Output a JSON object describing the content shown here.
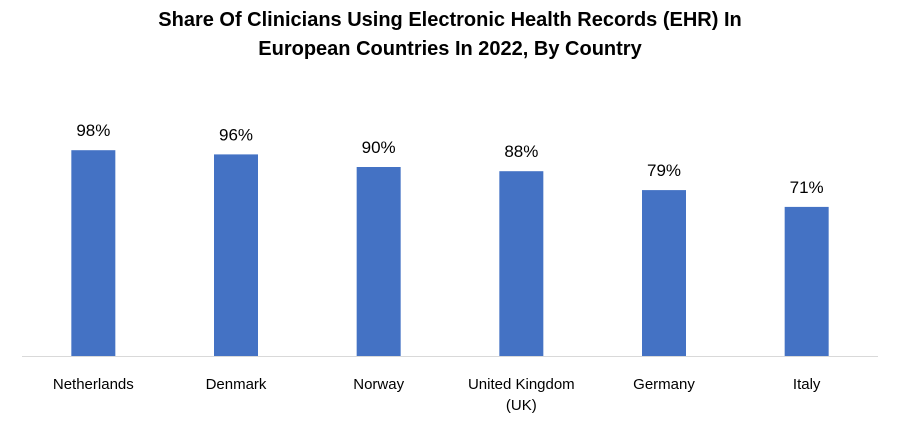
{
  "chart_data": {
    "type": "bar",
    "title_lines": [
      "Share Of Clinicians Using Electronic Health Records (EHR) In",
      "European Countries In 2022, By Country"
    ],
    "categories": [
      [
        "Netherlands"
      ],
      [
        "Denmark"
      ],
      [
        "Norway"
      ],
      [
        "United Kingdom",
        "(UK)"
      ],
      [
        "Germany"
      ],
      [
        "Italy"
      ]
    ],
    "values": [
      98,
      96,
      90,
      88,
      79,
      71
    ],
    "value_labels": [
      "98%",
      "96%",
      "90%",
      "88%",
      "79%",
      "71%"
    ],
    "ylim": [
      0,
      100
    ],
    "grid": false,
    "legend": "none",
    "bar_color": "#4472C4",
    "axis_color": "#D9D9D9"
  }
}
